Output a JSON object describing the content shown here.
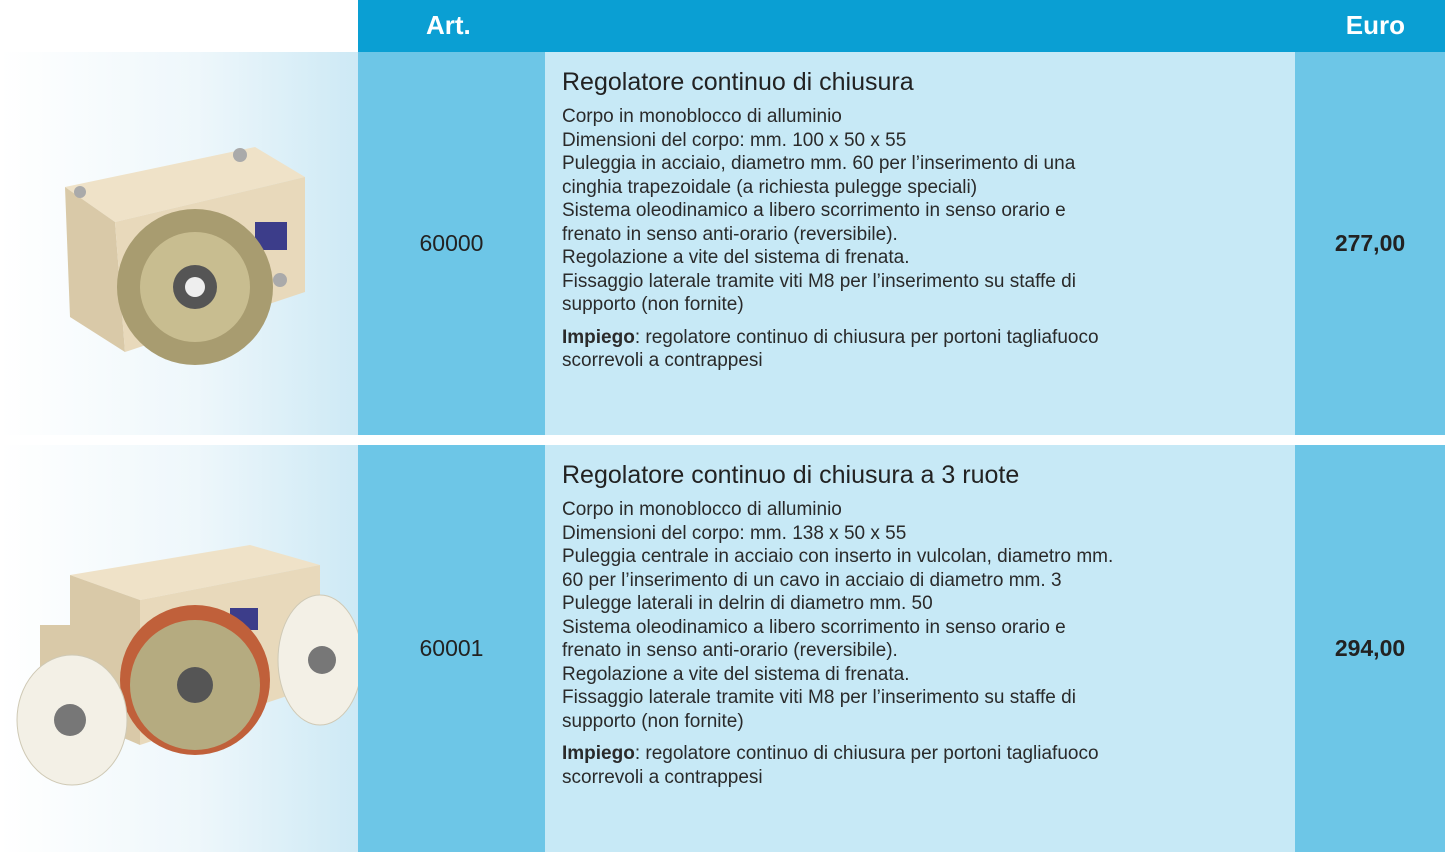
{
  "header": {
    "art": "Art.",
    "euro": "Euro"
  },
  "products": [
    {
      "code": "60000",
      "title": "Regolatore continuo di chiusura",
      "lines": [
        "Corpo in monoblocco di alluminio",
        "Dimensioni del corpo: mm. 100 x 50 x 55",
        "Puleggia in acciaio, diametro mm. 60 per l’inserimento di una",
        "cinghia trapezoidale (a richiesta pulegge speciali)",
        "Sistema oleodinamico a libero scorrimento in senso orario e",
        "frenato in senso anti-orario (reversibile).",
        "Regolazione a vite del sistema di frenata.",
        "Fissaggio laterale tramite viti M8 per l’inserimento su staffe di",
        "supporto (non fornite)"
      ],
      "usage_label": "Impiego",
      "usage_lines": [
        ": regolatore continuo di chiusura per portoni tagliafuoco",
        "scorrevoli a contrappesi"
      ],
      "price": "277,00"
    },
    {
      "code": "60001",
      "title": "Regolatore continuo di chiusura a 3 ruote",
      "lines": [
        "Corpo in monoblocco di alluminio",
        "Dimensioni del corpo: mm. 138 x 50 x 55",
        "Puleggia centrale in acciaio con inserto in vulcolan, diametro mm.",
        "60 per l’inserimento di un cavo in acciaio di diametro mm. 3",
        "Pulegge laterali in delrin di diametro mm. 50",
        "Sistema oleodinamico a libero scorrimento in senso orario e",
        "frenato in senso anti-orario (reversibile).",
        "Regolazione a vite del sistema di frenata.",
        "Fissaggio laterale tramite viti M8 per l’inserimento su staffe di",
        "supporto (non fornite)"
      ],
      "usage_label": "Impiego",
      "usage_lines": [
        ": regolatore continuo di chiusura per portoni tagliafuoco",
        "scorrevoli a contrappesi"
      ],
      "price": "294,00"
    }
  ]
}
